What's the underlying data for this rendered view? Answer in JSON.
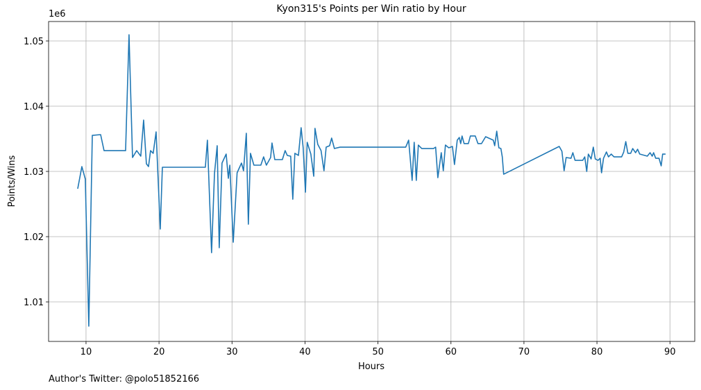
{
  "chart_data": {
    "type": "line",
    "title": "Kyon315's Points per Win ratio by Hour",
    "xlabel": "Hours",
    "ylabel": "Points/Wins",
    "offset_text": "1e6",
    "annotation": "Author's Twitter: @polo51852166",
    "color": "#1f77b4",
    "grid": true,
    "xlim": [
      4.87,
      93.4
    ],
    "ylim": [
      1.00394,
      1.05298
    ],
    "xticks": [
      10,
      20,
      30,
      40,
      50,
      60,
      70,
      80,
      90
    ],
    "yticks": [
      1.01,
      1.02,
      1.03,
      1.04,
      1.05
    ],
    "x": [
      8.86,
      9.43,
      9.9,
      10.38,
      10.86,
      12,
      12.47,
      15.42,
      15.89,
      16.37,
      16.94,
      17.5,
      17.89,
      18.27,
      18.56,
      18.84,
      19.2,
      19.6,
      20.17,
      20.46,
      26.35,
      26.63,
      27.2,
      27.6,
      27.97,
      28.25,
      28.63,
      29.2,
      29.5,
      29.7,
      30.17,
      30.7,
      31.3,
      31.58,
      31.96,
      32.24,
      32.53,
      33,
      33.95,
      34.33,
      34.71,
      35.29,
      35.48,
      35.86,
      36.9,
      37.28,
      37.57,
      38.04,
      38.33,
      38.61,
      39.1,
      39.47,
      39.75,
      40.06,
      40.3,
      40.8,
      41.2,
      41.37,
      41.75,
      42.2,
      42.6,
      42.9,
      43.37,
      43.65,
      44.03,
      44.8,
      53.8,
      54.2,
      54.68,
      54.96,
      55.25,
      55.53,
      56,
      57.6,
      57.9,
      58.2,
      58.67,
      58.95,
      59.24,
      59.7,
      60.2,
      60.48,
      60.86,
      61.14,
      61.33,
      61.52,
      61.8,
      62.38,
      62.66,
      63.33,
      63.7,
      64.18,
      64.75,
      65.8,
      65.99,
      66.27,
      66.56,
      66.84,
      67.03,
      67.22,
      74.83,
      75.2,
      75.5,
      75.78,
      76.45,
      76.7,
      77,
      78.05,
      78.33,
      78.6,
      78.82,
      79.2,
      79.5,
      79.77,
      80.15,
      80.44,
      80.63,
      80.9,
      81.3,
      81.58,
      81.96,
      82.34,
      83.38,
      83.67,
      83.95,
      84.24,
      84.62,
      84.9,
      85.29,
      85.57,
      85.86,
      86.9,
      87.28,
      87.57,
      87.76,
      88.05,
      88.5,
      88.8,
      89,
      89.4
    ],
    "values": [
      1.02734,
      1.03074,
      1.02883,
      1.00628,
      1.03553,
      1.03564,
      1.03319,
      1.03319,
      1.05096,
      1.03213,
      1.03319,
      1.03234,
      1.03787,
      1.03117,
      1.03074,
      1.03319,
      1.03277,
      1.03606,
      1.02117,
      1.03064,
      1.03064,
      1.03479,
      1.01755,
      1.02968,
      1.03394,
      1.0183,
      1.03128,
      1.03266,
      1.02894,
      1.03096,
      1.01915,
      1.02979,
      1.03128,
      1.03011,
      1.03585,
      1.02191,
      1.03277,
      1.03096,
      1.03096,
      1.03223,
      1.03096,
      1.03213,
      1.03436,
      1.03181,
      1.03181,
      1.03319,
      1.03245,
      1.03234,
      1.02574,
      1.03277,
      1.03245,
      1.0367,
      1.03362,
      1.02681,
      1.03447,
      1.03266,
      1.02926,
      1.0366,
      1.03415,
      1.03319,
      1.03011,
      1.03372,
      1.03394,
      1.03511,
      1.03351,
      1.03372,
      1.03372,
      1.03479,
      1.02862,
      1.03447,
      1.02862,
      1.03404,
      1.03351,
      1.03351,
      1.03372,
      1.02904,
      1.03287,
      1.03011,
      1.03404,
      1.03362,
      1.03383,
      1.03106,
      1.03479,
      1.03521,
      1.03426,
      1.03543,
      1.03426,
      1.03426,
      1.03543,
      1.03543,
      1.03426,
      1.03426,
      1.03532,
      1.03479,
      1.03394,
      1.03617,
      1.03362,
      1.03351,
      1.03223,
      1.02957,
      1.03383,
      1.03309,
      1.03011,
      1.03213,
      1.03202,
      1.03287,
      1.0317,
      1.0317,
      1.03223,
      1.03,
      1.03266,
      1.03191,
      1.03372,
      1.03191,
      1.0317,
      1.03202,
      1.02979,
      1.03202,
      1.03298,
      1.03223,
      1.03266,
      1.03223,
      1.03223,
      1.03298,
      1.03457,
      1.03277,
      1.03277,
      1.03351,
      1.03287,
      1.0334,
      1.03266,
      1.03234,
      1.03287,
      1.03234,
      1.03287,
      1.03202,
      1.03202,
      1.03085,
      1.03266,
      1.03266
    ]
  }
}
